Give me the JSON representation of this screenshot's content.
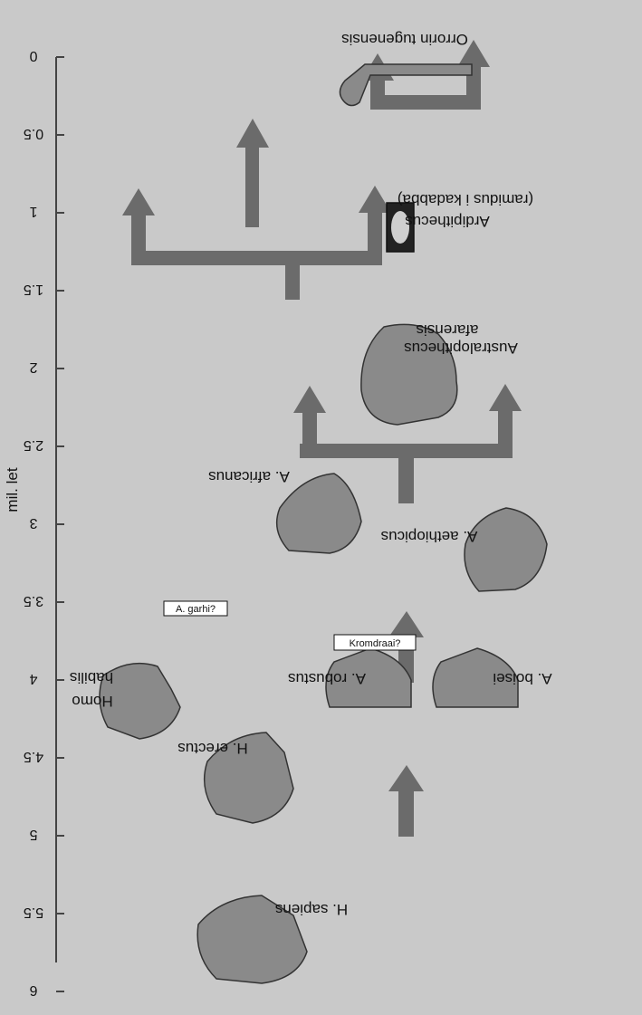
{
  "axis": {
    "title": "mil. let",
    "ticks": [
      "0",
      "0.5",
      "1",
      "1.5",
      "2",
      "2.5",
      "3",
      "3.5",
      "4",
      "4.5",
      "5",
      "5.5",
      "6"
    ]
  },
  "taxa": {
    "orrorin": "Orrorin tugenensis",
    "ardipithecus": "Ardipithecus",
    "ardipithecus_sub": "(ramidus i kadabba)",
    "australopithecus": "Australopithecus",
    "australopithecus_sub": "afarensis",
    "africanus": "A. africanus",
    "aethiopicus": "A. aethiopicus",
    "homo": "Homo",
    "homo_sub": "habilis",
    "erectus": "H. erectus",
    "robustus": "A. robustus",
    "boisei": "A. boisei",
    "sapiens": "H. sapiens"
  },
  "uncertain": {
    "garhi": "A. garhi?",
    "kromdraai": "Kromdraai?"
  },
  "colors": {
    "background": "#c9c9c9",
    "arrow": "#6b6b6b",
    "fossil": "#8a8a8a"
  }
}
